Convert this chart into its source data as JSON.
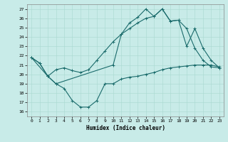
{
  "xlabel": "Humidex (Indice chaleur)",
  "bg_color": "#c8ebe8",
  "grid_color": "#a8d8d0",
  "line_color": "#1a6b6b",
  "xlim": [
    -0.5,
    23.5
  ],
  "ylim": [
    15.5,
    27.5
  ],
  "xticks": [
    0,
    1,
    2,
    3,
    4,
    5,
    6,
    7,
    8,
    9,
    10,
    11,
    12,
    13,
    14,
    15,
    16,
    17,
    18,
    19,
    20,
    21,
    22,
    23
  ],
  "yticks": [
    16,
    17,
    18,
    19,
    20,
    21,
    22,
    23,
    24,
    25,
    26,
    27
  ],
  "line1_x": [
    0,
    1,
    2,
    3,
    4,
    5,
    6,
    7,
    8,
    9,
    10,
    11,
    12,
    13,
    14,
    15,
    16,
    17,
    18,
    19,
    20,
    21,
    22,
    23
  ],
  "line1_y": [
    21.8,
    21.2,
    19.8,
    19.0,
    18.5,
    17.2,
    16.5,
    16.5,
    17.2,
    19.0,
    19.0,
    19.5,
    19.7,
    19.8,
    20.0,
    20.2,
    20.5,
    20.7,
    20.8,
    20.9,
    21.0,
    21.0,
    21.0,
    20.8
  ],
  "line2_x": [
    0,
    2,
    3,
    10,
    11,
    12,
    13,
    14,
    15,
    16,
    17,
    18,
    19,
    20,
    21,
    22,
    23
  ],
  "line2_y": [
    21.8,
    19.8,
    19.0,
    21.0,
    24.3,
    25.5,
    26.1,
    27.0,
    26.2,
    27.0,
    25.7,
    25.8,
    23.0,
    24.9,
    22.8,
    21.5,
    20.7
  ],
  "line3_x": [
    0,
    1,
    2,
    3,
    4,
    5,
    6,
    7,
    8,
    9,
    10,
    11,
    12,
    13,
    14,
    15,
    16,
    17,
    18,
    19,
    20,
    21,
    22,
    23
  ],
  "line3_y": [
    21.8,
    21.2,
    19.8,
    20.5,
    20.7,
    20.4,
    20.2,
    20.5,
    21.5,
    22.5,
    23.5,
    24.3,
    24.9,
    25.5,
    26.0,
    26.2,
    27.0,
    25.7,
    25.8,
    24.9,
    22.8,
    21.5,
    20.8,
    20.7
  ]
}
